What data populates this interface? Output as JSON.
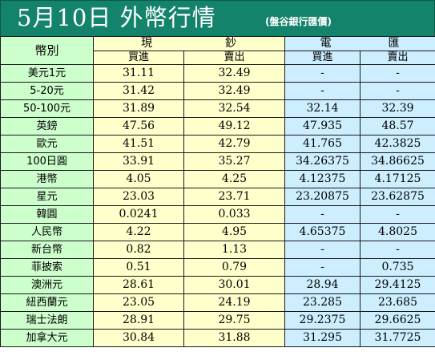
{
  "title": "5月10日 外幣行情",
  "subtitle": "(盤谷銀行匯價)",
  "table": {
    "corner_label": "幣別",
    "cash_group_chars": [
      "現",
      "鈔"
    ],
    "telegraphic_group_chars": [
      "電",
      "匯"
    ],
    "buy_label": "買進",
    "sell_label": "賣出",
    "rows": [
      {
        "currency": "美元1元",
        "cash_buy": "31.11",
        "cash_sell": "32.49",
        "tt_buy": "-",
        "tt_sell": "-"
      },
      {
        "currency": "5-20元",
        "cash_buy": "31.42",
        "cash_sell": "32.49",
        "tt_buy": "-",
        "tt_sell": "-"
      },
      {
        "currency": "50-100元",
        "cash_buy": "31.89",
        "cash_sell": "32.54",
        "tt_buy": "32.14",
        "tt_sell": "32.39"
      },
      {
        "currency": "英鎊",
        "cash_buy": "47.56",
        "cash_sell": "49.12",
        "tt_buy": "47.935",
        "tt_sell": "48.57"
      },
      {
        "currency": "歐元",
        "cash_buy": "41.51",
        "cash_sell": "42.79",
        "tt_buy": "41.765",
        "tt_sell": "42.3825"
      },
      {
        "currency": "100日圓",
        "cash_buy": "33.91",
        "cash_sell": "35.27",
        "tt_buy": "34.26375",
        "tt_sell": "34.86625"
      },
      {
        "currency": "港幣",
        "cash_buy": "4.05",
        "cash_sell": "4.25",
        "tt_buy": "4.12375",
        "tt_sell": "4.17125"
      },
      {
        "currency": "星元",
        "cash_buy": "23.03",
        "cash_sell": "23.71",
        "tt_buy": "23.20875",
        "tt_sell": "23.62875"
      },
      {
        "currency": "韓圓",
        "cash_buy": "0.0241",
        "cash_sell": "0.033",
        "tt_buy": "-",
        "tt_sell": "-"
      },
      {
        "currency": "人民幣",
        "cash_buy": "4.22",
        "cash_sell": "4.95",
        "tt_buy": "4.65375",
        "tt_sell": "4.8025"
      },
      {
        "currency": "新台幣",
        "cash_buy": "0.82",
        "cash_sell": "1.13",
        "tt_buy": "-",
        "tt_sell": "-"
      },
      {
        "currency": "菲披索",
        "cash_buy": "0.51",
        "cash_sell": "0.79",
        "tt_buy": "-",
        "tt_sell": "0.735"
      },
      {
        "currency": "澳洲元",
        "cash_buy": "28.61",
        "cash_sell": "30.01",
        "tt_buy": "28.94",
        "tt_sell": "29.4125"
      },
      {
        "currency": "紐西蘭元",
        "cash_buy": "23.05",
        "cash_sell": "24.19",
        "tt_buy": "23.285",
        "tt_sell": "23.685"
      },
      {
        "currency": "瑞士法朗",
        "cash_buy": "28.91",
        "cash_sell": "29.75",
        "tt_buy": "29.2375",
        "tt_sell": "29.6625"
      },
      {
        "currency": "加拿大元",
        "cash_buy": "30.84",
        "cash_sell": "31.88",
        "tt_buy": "31.295",
        "tt_sell": "31.7725"
      }
    ]
  },
  "colors": {
    "header_green": "#14836c",
    "row_header_green": "#ccffcc",
    "cash_yellow": "#ffffcc",
    "telegraphic_blue": "#cceeff"
  }
}
